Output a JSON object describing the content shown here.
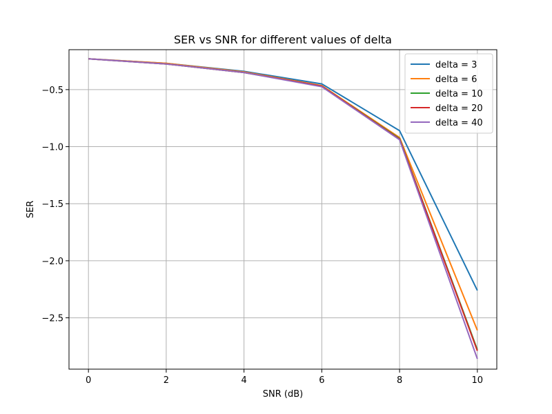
{
  "chart_data": {
    "type": "line",
    "title": "SER vs SNR for different values of delta",
    "xlabel": "SNR (dB)",
    "ylabel": "SER",
    "x": [
      0,
      2,
      4,
      6,
      8,
      10
    ],
    "xlim": [
      -0.5,
      10.5
    ],
    "ylim": [
      -2.95,
      -0.15
    ],
    "xticks": [
      0,
      2,
      4,
      6,
      8,
      10
    ],
    "xtick_labels": [
      "0",
      "2",
      "4",
      "6",
      "8",
      "10"
    ],
    "yticks": [
      -0.5,
      -1.0,
      -1.5,
      -2.0,
      -2.5
    ],
    "ytick_labels": [
      "−0.5",
      "−1.0",
      "−1.5",
      "−2.0",
      "−2.5"
    ],
    "grid": true,
    "legend_position": "top-right",
    "series": [
      {
        "name": "delta = 3",
        "color": "#1f77b4",
        "values": [
          -0.23,
          -0.27,
          -0.34,
          -0.45,
          -0.86,
          -2.26
        ]
      },
      {
        "name": "delta = 6",
        "color": "#ff7f0e",
        "values": [
          -0.23,
          -0.27,
          -0.345,
          -0.465,
          -0.92,
          -2.61
        ]
      },
      {
        "name": "delta = 10",
        "color": "#2ca02c",
        "values": [
          -0.23,
          -0.275,
          -0.35,
          -0.47,
          -0.93,
          -2.78
        ]
      },
      {
        "name": "delta = 20",
        "color": "#d62728",
        "values": [
          -0.23,
          -0.275,
          -0.35,
          -0.47,
          -0.935,
          -2.79
        ]
      },
      {
        "name": "delta = 40",
        "color": "#9467bd",
        "values": [
          -0.23,
          -0.275,
          -0.35,
          -0.475,
          -0.94,
          -2.86
        ]
      }
    ]
  }
}
